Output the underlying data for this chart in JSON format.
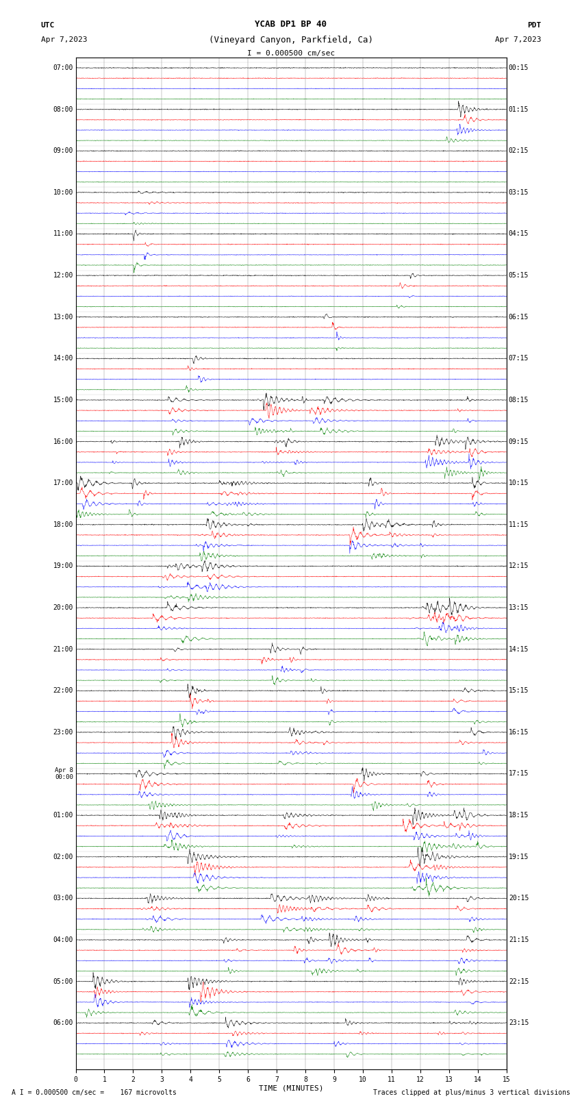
{
  "title_line1": "YCAB DP1 BP 40",
  "title_line2": "(Vineyard Canyon, Parkfield, Ca)",
  "scale_text": "I = 0.000500 cm/sec",
  "utc_label": "UTC",
  "date_left": "Apr 7,2023",
  "pdt_label": "PDT",
  "date_right": "Apr 7,2023",
  "xlabel": "TIME (MINUTES)",
  "footer_left": "A I = 0.000500 cm/sec =    167 microvolts",
  "footer_right": "Traces clipped at plus/minus 3 vertical divisions",
  "xlim": [
    0,
    15
  ],
  "xticks": [
    0,
    1,
    2,
    3,
    4,
    5,
    6,
    7,
    8,
    9,
    10,
    11,
    12,
    13,
    14,
    15
  ],
  "colors": [
    "black",
    "red",
    "blue",
    "green"
  ],
  "bg_color": "#ffffff",
  "hour_labels_left": [
    "07:00",
    "08:00",
    "09:00",
    "10:00",
    "11:00",
    "12:00",
    "13:00",
    "14:00",
    "15:00",
    "16:00",
    "17:00",
    "18:00",
    "19:00",
    "20:00",
    "21:00",
    "22:00",
    "23:00",
    "00:00",
    "01:00",
    "02:00",
    "03:00",
    "04:00",
    "05:00",
    "06:00"
  ],
  "hour_labels_right": [
    "00:15",
    "01:15",
    "02:15",
    "03:15",
    "04:15",
    "05:15",
    "06:15",
    "07:15",
    "08:15",
    "09:15",
    "10:15",
    "11:15",
    "12:15",
    "13:15",
    "14:15",
    "15:15",
    "16:15",
    "17:15",
    "18:15",
    "19:15",
    "20:15",
    "21:15",
    "22:15",
    "23:15"
  ],
  "seed": 42,
  "n_hours": 24,
  "traces_per_hour": 4,
  "amplitude_scale": 0.32,
  "n_samples": 1800
}
